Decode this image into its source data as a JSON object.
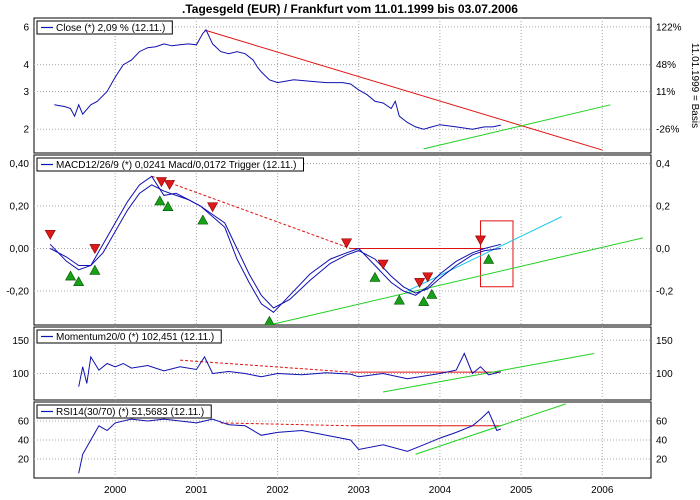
{
  "title": ".Tagesgeld (EUR) / Frankfurt vom 11.01.1999 bis 03.07.2006",
  "colors": {
    "price": "#1010b0",
    "trend_down": "#e01010",
    "trend_up": "#20d020",
    "trend_cyan": "#20c8e8",
    "grid": "#a8a8a8",
    "box": "#e01010"
  },
  "chart_data": [
    {
      "panel": "price",
      "type": "line",
      "legend": "Close (*) 2,09 % (12.11.)",
      "y_ticks_left": [
        "6",
        "4",
        "3",
        "2"
      ],
      "y_ticks_right": [
        "122%",
        "48%",
        "11%",
        "-26%"
      ],
      "right_axis_label": "11.01.1999 = Basis",
      "y_scale": "log",
      "ylim": [
        1.55,
        6.6
      ],
      "series": [
        {
          "x": [
            1999.25,
            1999.38,
            1999.45,
            1999.5,
            1999.55,
            1999.6,
            1999.7,
            1999.78,
            1999.9,
            2000.0,
            2000.1,
            2000.2,
            2000.3,
            2000.4,
            2000.5,
            2000.6,
            2000.7,
            2000.8,
            2000.9,
            2001.0,
            2001.08,
            2001.12,
            2001.2,
            2001.3,
            2001.4,
            2001.5,
            2001.6,
            2001.7,
            2001.75,
            2001.8,
            2001.9,
            2002.0,
            2002.2,
            2002.4,
            2002.6,
            2002.8,
            2002.9,
            2003.0,
            2003.1,
            2003.2,
            2003.3,
            2003.4,
            2003.45,
            2003.5,
            2003.6,
            2003.7,
            2003.8,
            2003.9,
            2004.0,
            2004.2,
            2004.4,
            2004.55,
            2004.65,
            2004.75
          ],
          "values": [
            2.6,
            2.55,
            2.5,
            2.3,
            2.6,
            2.35,
            2.6,
            2.7,
            3.0,
            3.5,
            4.0,
            4.2,
            4.6,
            4.8,
            4.85,
            5.0,
            4.9,
            4.95,
            5.0,
            4.95,
            5.6,
            5.8,
            5.0,
            4.6,
            4.5,
            4.6,
            4.5,
            4.2,
            3.9,
            3.7,
            3.4,
            3.3,
            3.4,
            3.35,
            3.3,
            3.3,
            3.25,
            3.05,
            2.9,
            2.7,
            2.65,
            2.5,
            2.7,
            2.3,
            2.15,
            2.05,
            2.0,
            2.05,
            2.1,
            2.05,
            2.0,
            2.05,
            2.05,
            2.09
          ]
        }
      ],
      "trendlines": [
        {
          "color": "red",
          "x": [
            2001.1,
            2006.0
          ],
          "y": [
            5.8,
            1.6
          ]
        },
        {
          "color": "green",
          "x": [
            2003.8,
            2006.1
          ],
          "y": [
            1.62,
            2.6
          ]
        }
      ]
    },
    {
      "panel": "macd",
      "type": "line",
      "legend": "MACD12/26/9 (*) 0,0241 Macd/0,0172 Trigger (12.11.)",
      "y_ticks_left": [
        "0,40",
        "0,20",
        "0,00",
        "-0,20"
      ],
      "y_ticks_right": [
        "0,4",
        "0,2",
        "0,0",
        "-0,2"
      ],
      "ylim": [
        -0.36,
        0.44
      ],
      "series": [
        {
          "name": "Macd",
          "x": [
            1999.2,
            1999.4,
            1999.55,
            1999.7,
            1999.85,
            2000.0,
            2000.15,
            2000.3,
            2000.45,
            2000.6,
            2000.75,
            2000.9,
            2001.05,
            2001.2,
            2001.35,
            2001.5,
            2001.65,
            2001.8,
            2001.95,
            2002.15,
            2002.4,
            2002.65,
            2002.85,
            2003.0,
            2003.2,
            2003.4,
            2003.55,
            2003.7,
            2003.85,
            2004.0,
            2004.2,
            2004.4,
            2004.55,
            2004.75
          ],
          "values": [
            0.02,
            -0.06,
            -0.1,
            -0.08,
            0.02,
            0.12,
            0.22,
            0.3,
            0.34,
            0.25,
            0.26,
            0.23,
            0.2,
            0.15,
            0.1,
            -0.05,
            -0.16,
            -0.26,
            -0.3,
            -0.22,
            -0.12,
            -0.05,
            -0.02,
            0.0,
            -0.08,
            -0.16,
            -0.2,
            -0.22,
            -0.18,
            -0.12,
            -0.06,
            -0.02,
            0.0,
            0.02
          ]
        },
        {
          "name": "Trigger",
          "x": [
            1999.2,
            1999.4,
            1999.55,
            1999.7,
            1999.85,
            2000.0,
            2000.15,
            2000.3,
            2000.45,
            2000.6,
            2000.75,
            2000.9,
            2001.05,
            2001.2,
            2001.35,
            2001.5,
            2001.65,
            2001.8,
            2001.95,
            2002.15,
            2002.4,
            2002.65,
            2002.85,
            2003.0,
            2003.2,
            2003.4,
            2003.55,
            2003.7,
            2003.85,
            2004.0,
            2004.2,
            2004.4,
            2004.55,
            2004.75
          ],
          "values": [
            0.0,
            -0.04,
            -0.08,
            -0.08,
            -0.02,
            0.08,
            0.18,
            0.26,
            0.3,
            0.27,
            0.25,
            0.23,
            0.2,
            0.16,
            0.12,
            0.0,
            -0.12,
            -0.22,
            -0.28,
            -0.24,
            -0.15,
            -0.07,
            -0.03,
            -0.01,
            -0.05,
            -0.13,
            -0.18,
            -0.21,
            -0.19,
            -0.14,
            -0.08,
            -0.03,
            -0.01,
            0.0
          ]
        }
      ],
      "sell_signals_x": [
        1999.2,
        1999.75,
        2000.45,
        2000.57,
        2000.67,
        2001.2,
        2002.85,
        2003.3,
        2003.75,
        2003.85,
        2004.5
      ],
      "buy_signals_x": [
        1999.45,
        1999.55,
        1999.75,
        2000.55,
        2000.65,
        2001.08,
        2001.9,
        2003.2,
        2003.5,
        2003.8,
        2003.9,
        2004.6
      ],
      "trendlines": [
        {
          "color": "red-dashed",
          "x": [
            2000.45,
            2002.9
          ],
          "y": [
            0.34,
            0.0
          ]
        },
        {
          "color": "red",
          "x": [
            2002.9,
            2004.55
          ],
          "y": [
            0.0,
            0.0
          ]
        },
        {
          "color": "green",
          "x": [
            2001.9,
            2006.5
          ],
          "y": [
            -0.36,
            0.05
          ]
        },
        {
          "color": "cyan",
          "x": [
            2003.6,
            2005.5
          ],
          "y": [
            -0.2,
            0.15
          ]
        }
      ]
    },
    {
      "panel": "momentum",
      "type": "line",
      "legend": "Momentum20/0 (*) 102,451 (12.11.)",
      "y_ticks_left": [
        "150",
        "100"
      ],
      "y_ticks_right": [
        "150",
        "100"
      ],
      "ylim": [
        60,
        170
      ],
      "series": [
        {
          "x": [
            1999.55,
            1999.6,
            1999.65,
            1999.7,
            1999.8,
            1999.9,
            2000.0,
            2000.1,
            2000.2,
            2000.4,
            2000.6,
            2000.8,
            2001.0,
            2001.1,
            2001.2,
            2001.4,
            2001.6,
            2001.8,
            2002.0,
            2002.3,
            2002.6,
            2002.9,
            2003.0,
            2003.3,
            2003.6,
            2003.8,
            2004.0,
            2004.2,
            2004.3,
            2004.4,
            2004.5,
            2004.6,
            2004.75
          ],
          "values": [
            80,
            110,
            85,
            125,
            105,
            115,
            110,
            115,
            108,
            112,
            104,
            110,
            106,
            125,
            100,
            103,
            100,
            95,
            100,
            98,
            101,
            99,
            95,
            100,
            92,
            96,
            100,
            105,
            130,
            100,
            110,
            98,
            102.451
          ]
        }
      ],
      "trendlines": [
        {
          "color": "red-dashed",
          "x": [
            2000.8,
            2002.9
          ],
          "y": [
            120,
            102
          ]
        },
        {
          "color": "red",
          "x": [
            2002.9,
            2004.75
          ],
          "y": [
            102,
            102
          ]
        },
        {
          "color": "green",
          "x": [
            2003.3,
            2005.9
          ],
          "y": [
            72,
            130
          ]
        }
      ]
    },
    {
      "panel": "rsi",
      "type": "line",
      "legend": "RSI14(30/70) (*) 51,5683 (12.11.)",
      "y_ticks_left": [
        "60",
        "40",
        "20"
      ],
      "y_ticks_right": [
        "60",
        "40",
        "20"
      ],
      "ylim": [
        0,
        80
      ],
      "series": [
        {
          "x": [
            1999.55,
            1999.6,
            1999.7,
            1999.8,
            1999.9,
            2000.0,
            2000.2,
            2000.4,
            2000.6,
            2000.8,
            2001.0,
            2001.2,
            2001.4,
            2001.6,
            2001.8,
            2002.0,
            2002.3,
            2002.6,
            2002.9,
            2003.0,
            2003.3,
            2003.6,
            2003.8,
            2004.0,
            2004.2,
            2004.4,
            2004.5,
            2004.6,
            2004.7,
            2004.75
          ],
          "values": [
            5,
            25,
            40,
            55,
            50,
            58,
            62,
            60,
            62,
            60,
            58,
            62,
            56,
            55,
            45,
            48,
            50,
            45,
            40,
            30,
            35,
            28,
            35,
            42,
            48,
            55,
            62,
            70,
            50,
            51.5683
          ]
        }
      ],
      "trendlines": [
        {
          "color": "red-dashed",
          "x": [
            2001.3,
            2002.9
          ],
          "y": [
            58,
            55
          ]
        },
        {
          "color": "red",
          "x": [
            2002.9,
            2004.75
          ],
          "y": [
            55,
            55
          ]
        },
        {
          "color": "green",
          "x": [
            2003.7,
            2005.55
          ],
          "y": [
            25,
            78
          ]
        }
      ]
    }
  ],
  "x_ticks": [
    "2000",
    "2001",
    "2002",
    "2003",
    "2004",
    "2005",
    "2006"
  ]
}
